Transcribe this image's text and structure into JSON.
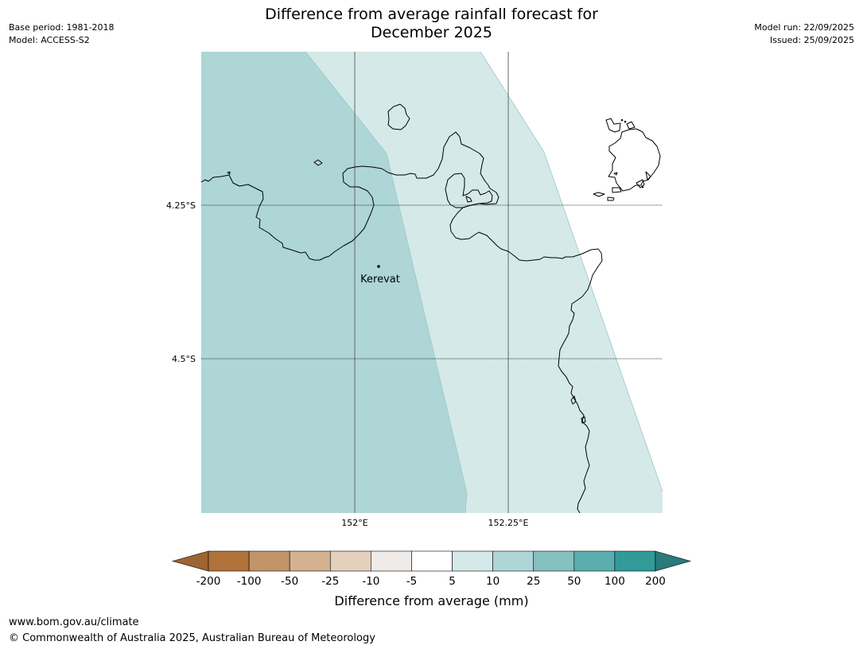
{
  "header": {
    "base_period": "Base period: 1981-2018",
    "model": "Model: ACCESS-S2",
    "title_line1": "Difference from average rainfall forecast for",
    "title_line2": "December 2025",
    "model_run": "Model run: 22/09/2025",
    "issued": "Issued: 25/09/2025"
  },
  "map": {
    "place": {
      "name": "Kerevat",
      "lon": 152.05,
      "lat": -4.35
    },
    "lat_labels": [
      "4.25°S",
      "4.5°S"
    ],
    "lon_labels": [
      "152°E",
      "152.25°E"
    ],
    "zone_colors": {
      "10_to_25": "#aed6d6",
      "5_to_10": "#d5e9e9"
    }
  },
  "colorbar": {
    "title": "Difference from average (mm)",
    "ticks": [
      "-200",
      "-100",
      "-50",
      "-25",
      "-10",
      "-5",
      "5",
      "10",
      "25",
      "50",
      "100",
      "200"
    ],
    "colors": [
      "#9f6433",
      "#b0733a",
      "#c3936a",
      "#d4b291",
      "#e5d0bd",
      "#efebe8",
      "#ffffff",
      "#d5e9e9",
      "#aed6d6",
      "#86c0bf",
      "#5cadad",
      "#339a9a",
      "#2a7a7a"
    ]
  },
  "footer": {
    "url": "www.bom.gov.au/climate",
    "copyright": "© Commonwealth of Australia 2025, Australian Bureau of Meteorology"
  }
}
